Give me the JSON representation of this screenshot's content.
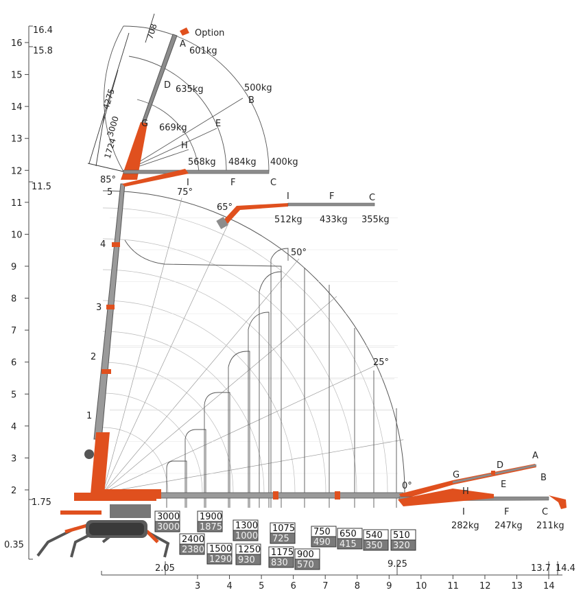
{
  "diagram": {
    "top_options": {
      "label": "Option"
    },
    "dims_mm": [
      "708",
      "4275",
      "3000",
      "1724"
    ],
    "left_axis": {
      "ticks": [
        "16",
        "15",
        "14",
        "13",
        "12",
        "11",
        "10",
        "9",
        "8",
        "7",
        "6",
        "5",
        "4",
        "3",
        "2"
      ],
      "special": [
        "16.4",
        "15.8",
        "11.5",
        "1.75",
        "0.35"
      ]
    },
    "bottom_axis": {
      "ticks": [
        "3",
        "4",
        "5",
        "6",
        "7",
        "8",
        "9",
        "10",
        "11",
        "12",
        "13",
        "14"
      ],
      "special": [
        "2.05",
        "9.25",
        "13.7",
        "14.4"
      ]
    },
    "angles": [
      "85°",
      "75°",
      "65°",
      "50°",
      "25°",
      "0°"
    ],
    "sections": [
      "1",
      "2",
      "3",
      "4",
      "5"
    ],
    "jib_vertical": {
      "points": [
        {
          "id": "A",
          "load": "601kg"
        },
        {
          "id": "D",
          "load": "635kg"
        },
        {
          "id": "G",
          "load": "669kg"
        },
        {
          "id": "B",
          "load": "500kg"
        },
        {
          "id": "E",
          "load": ""
        },
        {
          "id": "H",
          "load": ""
        },
        {
          "id": "I",
          "load": "568kg"
        },
        {
          "id": "F",
          "load": "484kg"
        },
        {
          "id": "C",
          "load": "400kg"
        }
      ]
    },
    "jib_65": {
      "points": [
        {
          "id": "I",
          "load": "512kg"
        },
        {
          "id": "F",
          "load": "433kg"
        },
        {
          "id": "C",
          "load": "355kg"
        }
      ]
    },
    "jib_0": {
      "points": [
        {
          "id": "G",
          "load": ""
        },
        {
          "id": "D",
          "load": ""
        },
        {
          "id": "A",
          "load": ""
        },
        {
          "id": "H",
          "load": ""
        },
        {
          "id": "E",
          "load": ""
        },
        {
          "id": "B",
          "load": ""
        },
        {
          "id": "I",
          "load": "282kg"
        },
        {
          "id": "F",
          "load": "247kg"
        },
        {
          "id": "C",
          "load": "211kg"
        }
      ]
    },
    "load_boxes": [
      {
        "top": "3000",
        "bottom": "3000"
      },
      {
        "top": "1900",
        "bottom": "1875"
      },
      {
        "top": "2400",
        "bottom": "2380"
      },
      {
        "top": "1500",
        "bottom": "1290"
      },
      {
        "top": "1300",
        "bottom": "1000"
      },
      {
        "top": "1250",
        "bottom": "930"
      },
      {
        "top": "1075",
        "bottom": "725"
      },
      {
        "top": "1175",
        "bottom": "830"
      },
      {
        "top": "900",
        "bottom": "570"
      },
      {
        "top": "750",
        "bottom": "490"
      },
      {
        "top": "650",
        "bottom": "415"
      },
      {
        "top": "540",
        "bottom": "350"
      },
      {
        "top": "510",
        "bottom": "320"
      }
    ],
    "colors": {
      "crane": "#e0501e",
      "boom": "#8c8c8c",
      "line": "#555555"
    }
  }
}
